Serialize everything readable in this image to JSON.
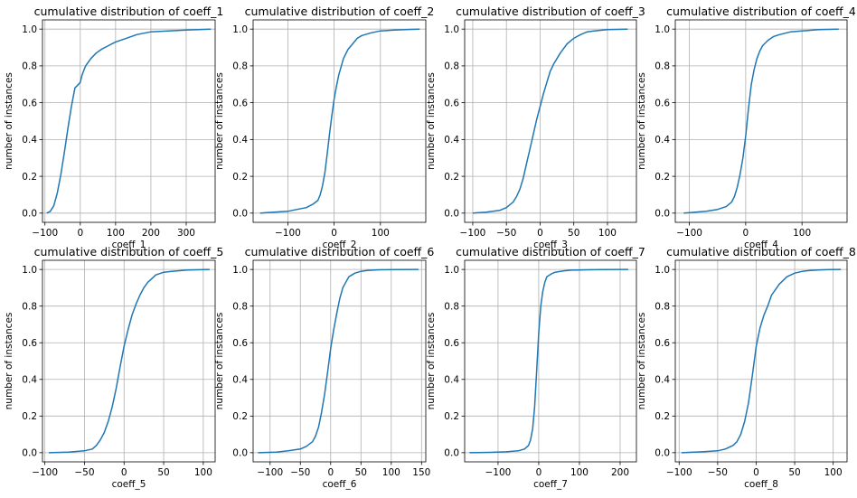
{
  "chart_data": [
    {
      "type": "line",
      "title": "cumulative distribution of coeff_1",
      "xlabel": "coeff_1",
      "ylabel": "number of instances",
      "xlim": [
        -107,
        382
      ],
      "ylim": [
        -0.05,
        1.05
      ],
      "xticks": [
        -100,
        0,
        100,
        200,
        300
      ],
      "yticks": [
        0.0,
        0.2,
        0.4,
        0.6,
        0.8,
        1.0
      ],
      "grid": true,
      "series": [
        {
          "color": "#1f77b4",
          "x": [
            -95,
            -85,
            -75,
            -65,
            -55,
            -45,
            -35,
            -25,
            -15,
            -5,
            0,
            5,
            15,
            30,
            45,
            60,
            80,
            100,
            130,
            160,
            200,
            250,
            300,
            370
          ],
          "y": [
            0.0,
            0.01,
            0.04,
            0.11,
            0.21,
            0.33,
            0.46,
            0.58,
            0.68,
            0.7,
            0.71,
            0.75,
            0.8,
            0.84,
            0.87,
            0.89,
            0.91,
            0.93,
            0.95,
            0.97,
            0.985,
            0.99,
            0.995,
            1.0
          ]
        }
      ]
    },
    {
      "type": "line",
      "title": "cumulative distribution of coeff_2",
      "xlabel": "coeff_2",
      "ylabel": "number of instances",
      "xlim": [
        -175,
        198
      ],
      "ylim": [
        -0.05,
        1.05
      ],
      "xticks": [
        -100,
        0,
        100
      ],
      "yticks": [
        0.0,
        0.2,
        0.4,
        0.6,
        0.8,
        1.0
      ],
      "grid": true,
      "series": [
        {
          "color": "#1f77b4",
          "x": [
            -160,
            -130,
            -100,
            -80,
            -60,
            -45,
            -35,
            -30,
            -25,
            -20,
            -15,
            -10,
            -5,
            0,
            5,
            10,
            20,
            30,
            40,
            50,
            60,
            80,
            100,
            130,
            160,
            185
          ],
          "y": [
            0.0,
            0.005,
            0.01,
            0.02,
            0.03,
            0.05,
            0.07,
            0.1,
            0.15,
            0.22,
            0.32,
            0.43,
            0.53,
            0.62,
            0.69,
            0.75,
            0.84,
            0.89,
            0.92,
            0.95,
            0.965,
            0.98,
            0.99,
            0.995,
            0.998,
            1.0
          ]
        }
      ]
    },
    {
      "type": "line",
      "title": "cumulative distribution of coeff_3",
      "xlabel": "coeff_3",
      "ylabel": "number of instances",
      "xlim": [
        -112,
        143
      ],
      "ylim": [
        -0.05,
        1.05
      ],
      "xticks": [
        -100,
        -50,
        0,
        50,
        100
      ],
      "yticks": [
        0.0,
        0.2,
        0.4,
        0.6,
        0.8,
        1.0
      ],
      "grid": true,
      "series": [
        {
          "color": "#1f77b4",
          "x": [
            -100,
            -80,
            -60,
            -50,
            -40,
            -35,
            -30,
            -25,
            -20,
            -15,
            -10,
            -5,
            0,
            5,
            10,
            15,
            20,
            30,
            40,
            50,
            60,
            70,
            80,
            100,
            130
          ],
          "y": [
            0.0,
            0.005,
            0.015,
            0.03,
            0.06,
            0.09,
            0.13,
            0.19,
            0.27,
            0.35,
            0.43,
            0.51,
            0.58,
            0.65,
            0.71,
            0.77,
            0.81,
            0.87,
            0.92,
            0.95,
            0.97,
            0.985,
            0.99,
            0.997,
            1.0
          ]
        }
      ]
    },
    {
      "type": "line",
      "title": "cumulative distribution of coeff_4",
      "xlabel": "coeff_4",
      "ylabel": "number of instances",
      "xlim": [
        -125,
        180
      ],
      "ylim": [
        -0.05,
        1.05
      ],
      "xticks": [
        -100,
        0,
        100
      ],
      "yticks": [
        0.0,
        0.2,
        0.4,
        0.6,
        0.8,
        1.0
      ],
      "grid": true,
      "series": [
        {
          "color": "#1f77b4",
          "x": [
            -110,
            -90,
            -70,
            -50,
            -35,
            -25,
            -20,
            -15,
            -10,
            -5,
            0,
            5,
            10,
            15,
            20,
            25,
            30,
            40,
            50,
            60,
            80,
            100,
            130,
            165
          ],
          "y": [
            0.0,
            0.005,
            0.01,
            0.02,
            0.035,
            0.06,
            0.09,
            0.14,
            0.21,
            0.3,
            0.42,
            0.57,
            0.7,
            0.78,
            0.84,
            0.88,
            0.91,
            0.94,
            0.96,
            0.97,
            0.985,
            0.99,
            0.997,
            1.0
          ]
        }
      ]
    },
    {
      "type": "line",
      "title": "cumulative distribution of coeff_5",
      "xlabel": "coeff_5",
      "ylabel": "number of instances",
      "xlim": [
        -103,
        115
      ],
      "ylim": [
        -0.05,
        1.05
      ],
      "xticks": [
        -100,
        -50,
        0,
        50,
        100
      ],
      "yticks": [
        0.0,
        0.2,
        0.4,
        0.6,
        0.8,
        1.0
      ],
      "grid": true,
      "series": [
        {
          "color": "#1f77b4",
          "x": [
            -95,
            -70,
            -50,
            -40,
            -35,
            -30,
            -25,
            -20,
            -15,
            -10,
            -5,
            0,
            5,
            10,
            15,
            20,
            25,
            30,
            35,
            40,
            50,
            60,
            80,
            108
          ],
          "y": [
            0.0,
            0.003,
            0.01,
            0.02,
            0.04,
            0.07,
            0.11,
            0.17,
            0.25,
            0.35,
            0.47,
            0.58,
            0.67,
            0.75,
            0.81,
            0.86,
            0.9,
            0.93,
            0.95,
            0.97,
            0.985,
            0.99,
            0.997,
            1.0
          ]
        }
      ]
    },
    {
      "type": "line",
      "title": "cumulative distribution of coeff_6",
      "xlabel": "coeff_6",
      "ylabel": "number of instances",
      "xlim": [
        -128,
        157
      ],
      "ylim": [
        -0.05,
        1.05
      ],
      "xticks": [
        -100,
        -50,
        0,
        50,
        100,
        150
      ],
      "yticks": [
        0.0,
        0.2,
        0.4,
        0.6,
        0.8,
        1.0
      ],
      "grid": true,
      "series": [
        {
          "color": "#1f77b4",
          "x": [
            -120,
            -90,
            -70,
            -50,
            -40,
            -30,
            -25,
            -20,
            -15,
            -10,
            -5,
            0,
            5,
            10,
            15,
            20,
            25,
            30,
            40,
            50,
            60,
            80,
            110,
            145
          ],
          "y": [
            0.0,
            0.003,
            0.01,
            0.02,
            0.035,
            0.06,
            0.09,
            0.14,
            0.22,
            0.32,
            0.44,
            0.57,
            0.67,
            0.76,
            0.84,
            0.9,
            0.93,
            0.96,
            0.98,
            0.99,
            0.995,
            0.998,
            0.999,
            1.0
          ]
        }
      ]
    },
    {
      "type": "line",
      "title": "cumulative distribution of coeff_7",
      "xlabel": "coeff_7",
      "ylabel": "number of instances",
      "xlim": [
        -182,
        240
      ],
      "ylim": [
        -0.05,
        1.05
      ],
      "xticks": [
        -100,
        0,
        100,
        200
      ],
      "yticks": [
        0.0,
        0.2,
        0.4,
        0.6,
        0.8,
        1.0
      ],
      "grid": true,
      "series": [
        {
          "color": "#1f77b4",
          "x": [
            -170,
            -120,
            -80,
            -50,
            -35,
            -25,
            -20,
            -15,
            -10,
            -5,
            0,
            5,
            10,
            15,
            20,
            30,
            40,
            60,
            80,
            120,
            160,
            220
          ],
          "y": [
            0.0,
            0.002,
            0.005,
            0.01,
            0.02,
            0.04,
            0.07,
            0.13,
            0.25,
            0.45,
            0.65,
            0.8,
            0.88,
            0.93,
            0.96,
            0.975,
            0.985,
            0.992,
            0.996,
            0.998,
            0.999,
            1.0
          ]
        }
      ]
    },
    {
      "type": "line",
      "title": "cumulative distribution of coeff_8",
      "xlabel": "coeff_8",
      "ylabel": "number of instances",
      "xlim": [
        -105,
        118
      ],
      "ylim": [
        -0.05,
        1.05
      ],
      "xticks": [
        -100,
        -50,
        0,
        50,
        100
      ],
      "yticks": [
        0.0,
        0.2,
        0.4,
        0.6,
        0.8,
        1.0
      ],
      "grid": true,
      "series": [
        {
          "color": "#1f77b4",
          "x": [
            -97,
            -70,
            -50,
            -40,
            -30,
            -25,
            -20,
            -15,
            -10,
            -5,
            0,
            5,
            10,
            15,
            20,
            25,
            30,
            40,
            50,
            60,
            70,
            80,
            95,
            110
          ],
          "y": [
            0.0,
            0.005,
            0.01,
            0.02,
            0.04,
            0.06,
            0.1,
            0.17,
            0.27,
            0.42,
            0.58,
            0.68,
            0.75,
            0.8,
            0.86,
            0.89,
            0.92,
            0.96,
            0.98,
            0.99,
            0.995,
            0.997,
            0.999,
            1.0
          ]
        }
      ]
    }
  ]
}
